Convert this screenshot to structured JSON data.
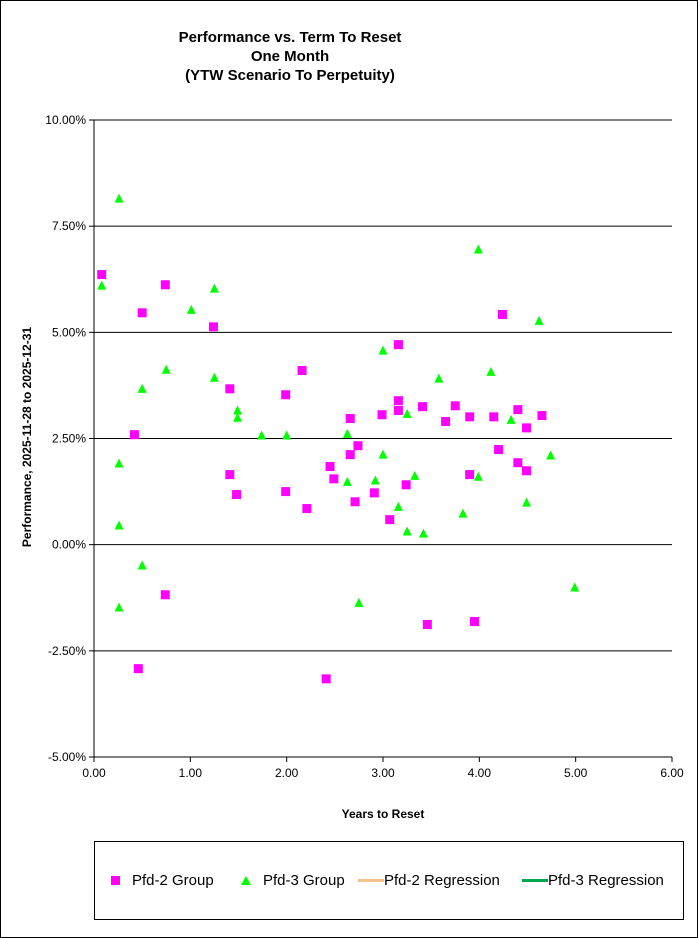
{
  "chart_data": {
    "type": "scatter",
    "title": [
      "Performance vs. Term To Reset",
      "One Month",
      "(YTW Scenario To Perpetuity)"
    ],
    "xlabel": "Years to Reset",
    "ylabel": "Performance, 2025-11-28  to 2025-12-31",
    "xlim": [
      0,
      6
    ],
    "ylim": [
      -5,
      10
    ],
    "xticks": [
      "0.00",
      "1.00",
      "2.00",
      "3.00",
      "4.00",
      "5.00",
      "6.00"
    ],
    "yticks": [
      "10.00%",
      "7.50%",
      "5.00%",
      "2.50%",
      "0.00%",
      "-2.50%",
      "-5.00%"
    ],
    "ytick_values": [
      10,
      7.5,
      5,
      2.5,
      0,
      -2.5,
      -5
    ],
    "grid": "horizontal",
    "legend_position": "bottom",
    "series": [
      {
        "name": "Pfd-2 Group",
        "marker": "square",
        "color": "#ff00ff",
        "points": [
          [
            0.08,
            6.36
          ],
          [
            0.5,
            5.46
          ],
          [
            0.74,
            6.12
          ],
          [
            0.42,
            2.59
          ],
          [
            0.46,
            -2.92
          ],
          [
            0.74,
            -1.18
          ],
          [
            1.24,
            5.13
          ],
          [
            1.41,
            3.67
          ],
          [
            1.41,
            1.65
          ],
          [
            1.48,
            1.18
          ],
          [
            1.99,
            3.53
          ],
          [
            2.16,
            4.1
          ],
          [
            1.99,
            1.25
          ],
          [
            2.21,
            0.85
          ],
          [
            2.41,
            -3.16
          ],
          [
            2.45,
            1.84
          ],
          [
            2.49,
            1.55
          ],
          [
            2.66,
            2.97
          ],
          [
            2.66,
            2.12
          ],
          [
            2.74,
            2.33
          ],
          [
            2.71,
            1.01
          ],
          [
            2.91,
            1.22
          ],
          [
            2.99,
            3.06
          ],
          [
            3.07,
            0.59
          ],
          [
            3.16,
            4.71
          ],
          [
            3.16,
            3.39
          ],
          [
            3.16,
            3.16
          ],
          [
            3.24,
            1.41
          ],
          [
            3.41,
            3.25
          ],
          [
            3.46,
            -1.88
          ],
          [
            3.65,
            2.9
          ],
          [
            3.75,
            3.27
          ],
          [
            3.9,
            3.01
          ],
          [
            3.9,
            1.65
          ],
          [
            3.95,
            -1.81
          ],
          [
            4.15,
            3.01
          ],
          [
            4.2,
            2.24
          ],
          [
            4.24,
            5.42
          ],
          [
            4.4,
            3.18
          ],
          [
            4.4,
            1.93
          ],
          [
            4.49,
            2.75
          ],
          [
            4.49,
            1.74
          ],
          [
            4.65,
            3.04
          ]
        ]
      },
      {
        "name": "Pfd-3 Group",
        "marker": "triangle",
        "color": "#00ff00",
        "points": [
          [
            0.26,
            8.15
          ],
          [
            0.08,
            6.1
          ],
          [
            0.26,
            1.91
          ],
          [
            0.26,
            0.45
          ],
          [
            0.26,
            -1.48
          ],
          [
            0.5,
            3.67
          ],
          [
            0.5,
            -0.49
          ],
          [
            0.75,
            4.12
          ],
          [
            1.01,
            5.53
          ],
          [
            1.25,
            6.03
          ],
          [
            1.25,
            3.93
          ],
          [
            1.49,
            3.16
          ],
          [
            1.49,
            2.99
          ],
          [
            1.74,
            2.57
          ],
          [
            2.0,
            2.57
          ],
          [
            2.63,
            2.61
          ],
          [
            2.63,
            1.48
          ],
          [
            2.75,
            -1.37
          ],
          [
            2.92,
            1.51
          ],
          [
            3.0,
            4.57
          ],
          [
            3.0,
            2.12
          ],
          [
            3.16,
            0.89
          ],
          [
            3.25,
            3.08
          ],
          [
            3.25,
            0.31
          ],
          [
            3.33,
            1.62
          ],
          [
            3.42,
            0.26
          ],
          [
            3.58,
            3.91
          ],
          [
            3.83,
            0.73
          ],
          [
            3.99,
            6.95
          ],
          [
            3.99,
            1.6
          ],
          [
            4.12,
            4.07
          ],
          [
            4.33,
            2.94
          ],
          [
            4.49,
            0.99
          ],
          [
            4.62,
            5.27
          ],
          [
            4.74,
            2.1
          ],
          [
            4.99,
            -1.01
          ]
        ]
      },
      {
        "name": "Pfd-2 Regression",
        "marker": "line",
        "color": "#f4c08c",
        "points": []
      },
      {
        "name": "Pfd-3 Regression",
        "marker": "line",
        "color": "#00a550",
        "points": []
      }
    ]
  }
}
